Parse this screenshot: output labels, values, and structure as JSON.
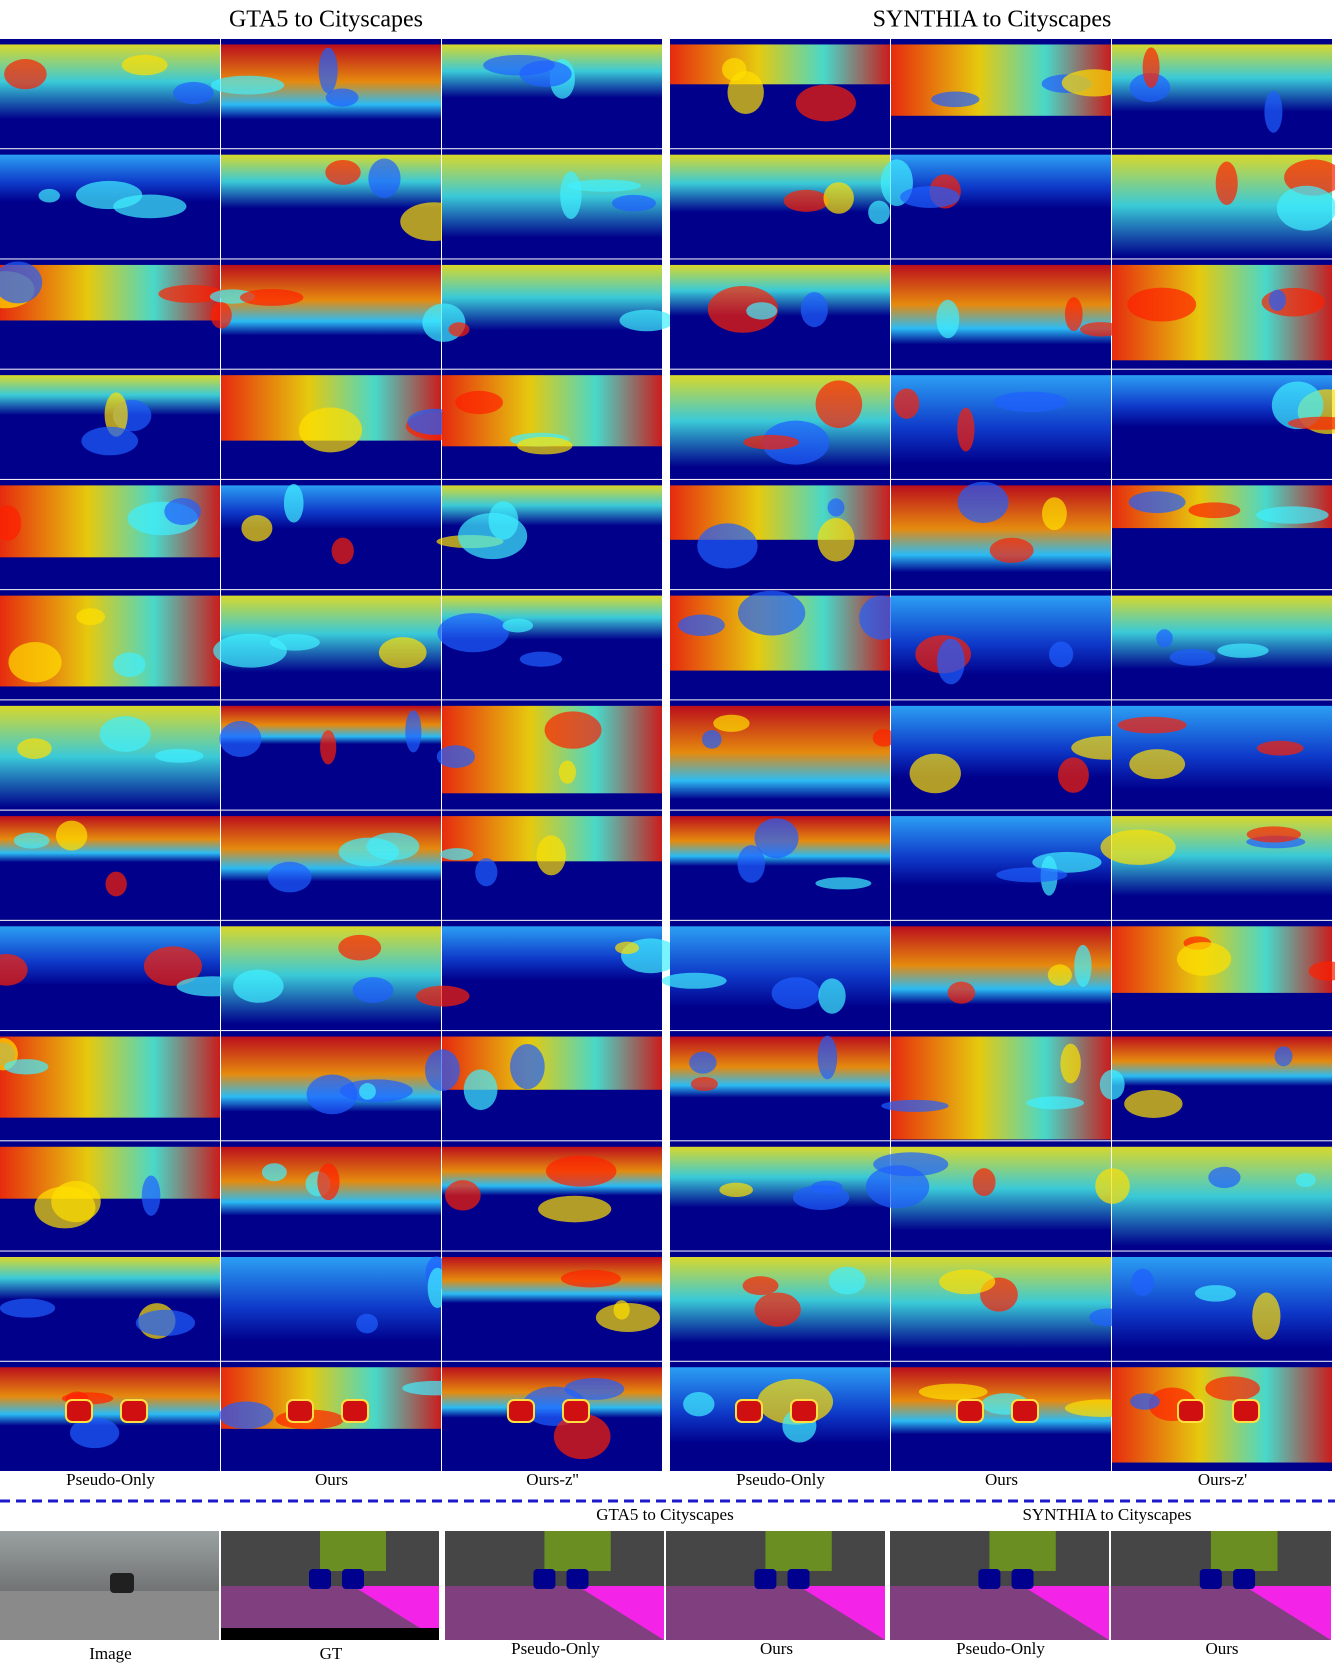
{
  "panel_titles": [
    "GTA5 to Cityscapes",
    "SYNTHIA to Cityscapes"
  ],
  "column_labels": [
    [
      "Pseudo-Only",
      "Ours",
      "Ours-z''"
    ],
    [
      "Pseudo-Only",
      "Ours",
      "Ours-z'"
    ]
  ],
  "bottom": {
    "titles": [
      "GTA5 to Cityscapes",
      "SYNTHIA to Cityscapes"
    ],
    "labels": [
      "Image",
      "GT",
      "Pseudo-Only",
      "Ours",
      "Pseudo-Only",
      "Ours"
    ]
  }
}
